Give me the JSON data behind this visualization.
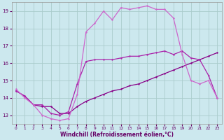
{
  "background_color": "#cce8ee",
  "grid_color": "#aacccc",
  "line_color_dark": "#880088",
  "line_color_mid": "#aa22aa",
  "line_color_light": "#cc66cc",
  "xlabel": "Windchill (Refroidissement éolien,°C)",
  "xlim": [
    -0.5,
    23.5
  ],
  "ylim": [
    12.5,
    19.5
  ],
  "yticks": [
    13,
    14,
    15,
    16,
    17,
    18,
    19
  ],
  "xticks": [
    0,
    1,
    2,
    3,
    4,
    5,
    6,
    7,
    8,
    9,
    10,
    11,
    12,
    13,
    14,
    15,
    16,
    17,
    18,
    19,
    20,
    21,
    22,
    23
  ],
  "series1_x": [
    0,
    1,
    2,
    3,
    4,
    5,
    6,
    7,
    8,
    9,
    10,
    11,
    12,
    13,
    14,
    15,
    16,
    17,
    18,
    19,
    20,
    21,
    22,
    23
  ],
  "series1_y": [
    14.4,
    14.1,
    13.6,
    13.5,
    13.5,
    13.1,
    13.1,
    13.5,
    13.8,
    14.0,
    14.2,
    14.4,
    14.5,
    14.7,
    14.8,
    15.0,
    15.2,
    15.4,
    15.6,
    15.8,
    16.0,
    16.2,
    16.4,
    16.6
  ],
  "series2_x": [
    0,
    1,
    2,
    3,
    4,
    5,
    6,
    7,
    8,
    9,
    10,
    11,
    12,
    13,
    14,
    15,
    16,
    17,
    18,
    19,
    20,
    21,
    22,
    23
  ],
  "series2_y": [
    14.4,
    14.1,
    13.6,
    13.6,
    13.1,
    13.0,
    13.2,
    14.8,
    16.1,
    16.2,
    16.2,
    16.2,
    16.3,
    16.4,
    16.4,
    16.5,
    16.6,
    16.7,
    16.5,
    16.7,
    16.3,
    16.2,
    15.3,
    14.0
  ],
  "series3_x": [
    0,
    1,
    2,
    3,
    4,
    5,
    6,
    7,
    8,
    9,
    10,
    11,
    12,
    13,
    14,
    15,
    16,
    17,
    18,
    19,
    20,
    21,
    22,
    23
  ],
  "series3_y": [
    14.5,
    14.0,
    13.6,
    13.0,
    12.8,
    12.7,
    12.8,
    14.2,
    17.8,
    18.3,
    19.0,
    18.5,
    19.2,
    19.1,
    19.2,
    19.3,
    19.1,
    19.1,
    18.6,
    16.5,
    15.0,
    14.8,
    15.0,
    14.0
  ]
}
